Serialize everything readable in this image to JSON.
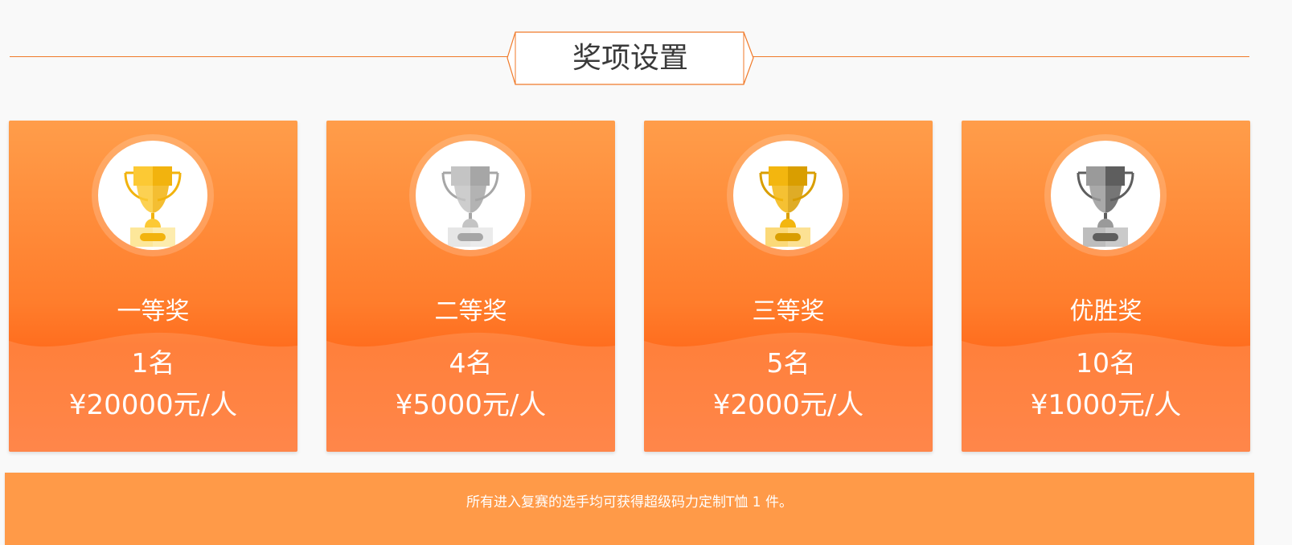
{
  "section": {
    "title": "奖项设置",
    "accent": "#f07a2a"
  },
  "prizes": [
    {
      "title": "一等奖",
      "count": "1名",
      "amount": "¥20000元/人",
      "icon": "gold-trophy-icon",
      "colors": [
        "#fcc934",
        "#f2b30e",
        "#fde79a"
      ]
    },
    {
      "title": "二等奖",
      "count": "4名",
      "amount": "¥5000元/人",
      "icon": "silver-trophy-icon",
      "colors": [
        "#c4c4c4",
        "#a6a6a6",
        "#e6e6e6"
      ]
    },
    {
      "title": "三等奖",
      "count": "5名",
      "amount": "¥2000元/人",
      "icon": "bronze-trophy-icon",
      "colors": [
        "#f3b60f",
        "#d99e00",
        "#fbd978"
      ]
    },
    {
      "title": "优胜奖",
      "count": "10名",
      "amount": "¥1000元/人",
      "icon": "gray-trophy-icon",
      "colors": [
        "#9a9a9a",
        "#5e5e5e",
        "#bdbdbd"
      ]
    }
  ],
  "banner": {
    "text": "所有进入复赛的选手均可获得超级码力定制T恤 1 件。",
    "color": "#ff9a48"
  }
}
